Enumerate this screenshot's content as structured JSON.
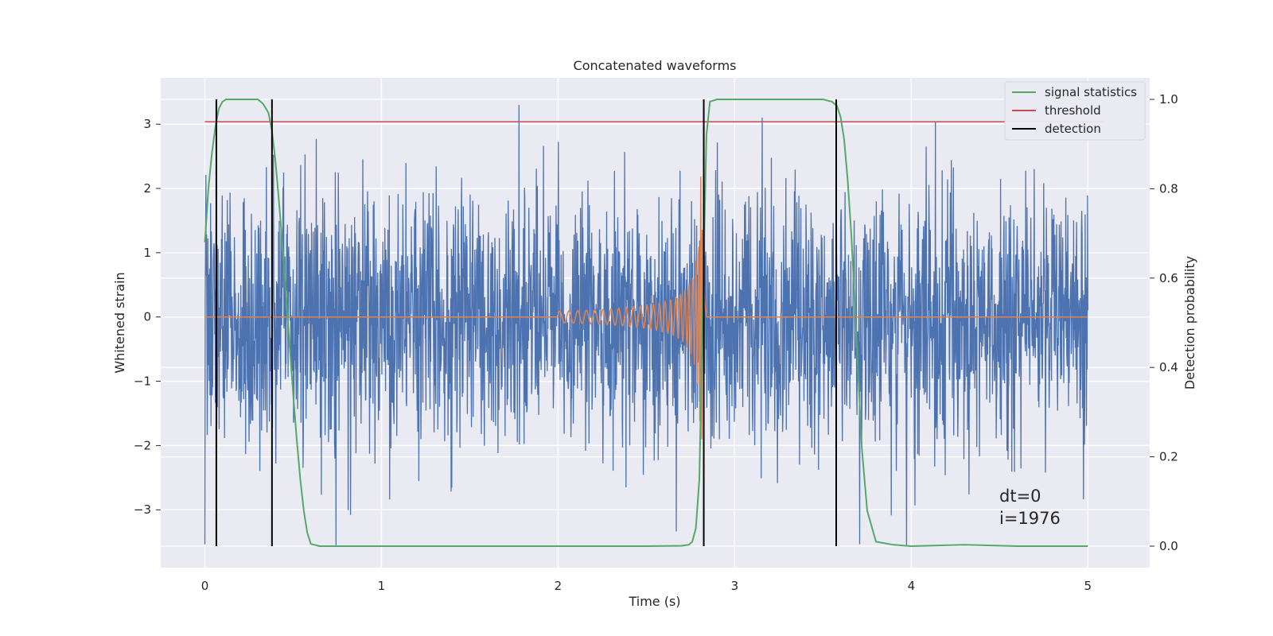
{
  "chart_data": {
    "type": "line",
    "title": "Concatenated waveforms",
    "xlabel": "Time (s)",
    "ylabel": "Whitened strain",
    "y2label": "Detection probability",
    "xlim": [
      -0.25,
      5.35
    ],
    "ylim": [
      -3.9,
      3.72
    ],
    "y2lim": [
      -0.048,
      1.048
    ],
    "x_ticks": [
      0,
      1,
      2,
      3,
      4,
      5
    ],
    "y_ticks": [
      -3,
      -2,
      -1,
      0,
      1,
      2,
      3
    ],
    "y2_ticks": [
      0.0,
      0.2,
      0.4,
      0.6,
      0.8,
      1.0
    ],
    "x_tick_labels": [
      "0",
      "1",
      "2",
      "3",
      "4",
      "5"
    ],
    "y_tick_labels": [
      "−3",
      "−2",
      "−1",
      "0",
      "1",
      "2",
      "3"
    ],
    "y2_tick_labels": [
      "0.0",
      "0.2",
      "0.4",
      "0.6",
      "0.8",
      "1.0"
    ],
    "grid": true,
    "legend_position": "top-right",
    "colors": {
      "background": "#EAEAF2",
      "noise": "#4C72B0",
      "template": "#DD8452",
      "signal_statistics": "#55A868",
      "threshold": "#C44E52",
      "detection": "#000000"
    },
    "series": [
      {
        "name": "signal statistics",
        "axis": "right",
        "color": "#55A868",
        "x": [
          0.0,
          0.02,
          0.04,
          0.06,
          0.08,
          0.1,
          0.12,
          0.15,
          0.2,
          0.3,
          0.33,
          0.36,
          0.38,
          0.4,
          0.42,
          0.44,
          0.46,
          0.48,
          0.5,
          0.52,
          0.54,
          0.56,
          0.58,
          0.6,
          0.65,
          1.0,
          1.5,
          2.0,
          2.5,
          2.7,
          2.74,
          2.76,
          2.78,
          2.8,
          2.82,
          2.84,
          2.86,
          2.9,
          3.0,
          3.2,
          3.4,
          3.5,
          3.55,
          3.58,
          3.6,
          3.62,
          3.64,
          3.66,
          3.68,
          3.7,
          3.72,
          3.75,
          3.8,
          3.9,
          4.0,
          4.3,
          4.6,
          5.0
        ],
        "y": [
          0.68,
          0.8,
          0.88,
          0.94,
          0.98,
          0.995,
          1.0,
          1.0,
          1.0,
          1.0,
          0.99,
          0.97,
          0.93,
          0.86,
          0.77,
          0.67,
          0.56,
          0.45,
          0.34,
          0.24,
          0.15,
          0.08,
          0.03,
          0.005,
          0.0,
          0.0,
          0.0,
          0.0,
          0.0,
          0.001,
          0.003,
          0.01,
          0.04,
          0.15,
          0.55,
          0.92,
          0.995,
          1.0,
          1.0,
          1.0,
          1.0,
          1.0,
          0.995,
          0.985,
          0.96,
          0.91,
          0.82,
          0.7,
          0.55,
          0.38,
          0.22,
          0.08,
          0.01,
          0.003,
          0.0,
          0.003,
          0.0,
          0.0
        ]
      },
      {
        "name": "threshold",
        "axis": "right",
        "color": "#C44E52",
        "x": [
          0.0,
          5.1
        ],
        "y": [
          0.95,
          0.95
        ]
      },
      {
        "name": "detection",
        "axis": "right",
        "color": "#000000",
        "x": [
          0.065,
          0.38,
          2.825,
          3.575
        ]
      },
      {
        "name": "",
        "axis": "left",
        "color": "#4C72B0",
        "kind": "whitened strain noise",
        "x_range": [
          0.0,
          5.0
        ],
        "sigma": 1.0
      },
      {
        "name": "",
        "axis": "left",
        "color": "#DD8452",
        "kind": "injected chirp",
        "x_range": [
          0.0,
          5.0
        ],
        "chirp_start": 2.0,
        "merger": 2.82
      }
    ]
  },
  "annotations": {
    "dt": "dt=0",
    "i": "i=1976"
  },
  "legend": [
    {
      "label": "signal statistics",
      "color": "#55A868"
    },
    {
      "label": "threshold",
      "color": "#C44E52"
    },
    {
      "label": "detection",
      "color": "#000000"
    }
  ]
}
